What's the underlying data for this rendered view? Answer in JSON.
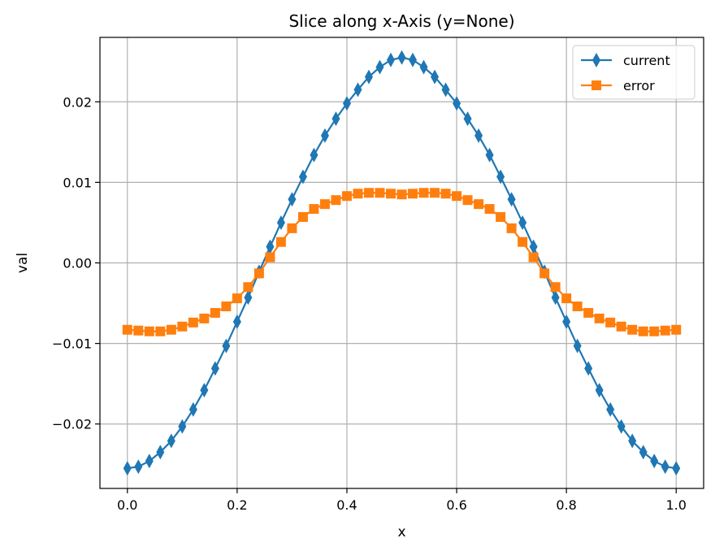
{
  "chart_data": {
    "type": "line",
    "title": "Slice along x-Axis (y=None)",
    "xlabel": "x",
    "ylabel": "val",
    "xlim": [
      -0.05,
      1.05
    ],
    "ylim": [
      -0.028,
      0.028
    ],
    "x_ticks": [
      0.0,
      0.2,
      0.4,
      0.6,
      0.8,
      1.0
    ],
    "x_tick_labels": [
      "0.0",
      "0.2",
      "0.4",
      "0.6",
      "0.8",
      "1.0"
    ],
    "y_ticks": [
      -0.02,
      -0.01,
      0.0,
      0.01,
      0.02
    ],
    "y_tick_labels": [
      "−0.02",
      "−0.01",
      "0.00",
      "0.01",
      "0.02"
    ],
    "grid": true,
    "legend_position": "top-right",
    "series": [
      {
        "name": "current",
        "color": "#1f77b4",
        "marker": "thin-diamond",
        "x": [
          0.0,
          0.02,
          0.04,
          0.06,
          0.08,
          0.1,
          0.12,
          0.14,
          0.16,
          0.18,
          0.2,
          0.22,
          0.24,
          0.26,
          0.28,
          0.3,
          0.32,
          0.34,
          0.36,
          0.38,
          0.4,
          0.42,
          0.44,
          0.46,
          0.48,
          0.5,
          0.52,
          0.54,
          0.56,
          0.58,
          0.6,
          0.62,
          0.64,
          0.66,
          0.68,
          0.7,
          0.72,
          0.74,
          0.76,
          0.78,
          0.8,
          0.82,
          0.84,
          0.86,
          0.88,
          0.9,
          0.92,
          0.94,
          0.96,
          0.98,
          1.0
        ],
        "values": [
          -0.0255,
          -0.0253,
          -0.0246,
          -0.0235,
          -0.0221,
          -0.0203,
          -0.0182,
          -0.0158,
          -0.0131,
          -0.0103,
          -0.0073,
          -0.0043,
          -0.0011,
          0.002,
          0.005,
          0.0079,
          0.0107,
          0.0134,
          0.0158,
          0.0179,
          0.0198,
          0.0215,
          0.0231,
          0.0243,
          0.0252,
          0.0255,
          0.0252,
          0.0243,
          0.0231,
          0.0215,
          0.0198,
          0.0179,
          0.0158,
          0.0134,
          0.0107,
          0.0079,
          0.005,
          0.002,
          -0.0011,
          -0.0043,
          -0.0073,
          -0.0103,
          -0.0131,
          -0.0158,
          -0.0182,
          -0.0203,
          -0.0221,
          -0.0235,
          -0.0246,
          -0.0253,
          -0.0255
        ]
      },
      {
        "name": "error",
        "color": "#ff7f0e",
        "marker": "square",
        "x": [
          0.0,
          0.02,
          0.04,
          0.06,
          0.08,
          0.1,
          0.12,
          0.14,
          0.16,
          0.18,
          0.2,
          0.22,
          0.24,
          0.26,
          0.28,
          0.3,
          0.32,
          0.34,
          0.36,
          0.38,
          0.4,
          0.42,
          0.44,
          0.46,
          0.48,
          0.5,
          0.52,
          0.54,
          0.56,
          0.58,
          0.6,
          0.62,
          0.64,
          0.66,
          0.68,
          0.7,
          0.72,
          0.74,
          0.76,
          0.78,
          0.8,
          0.82,
          0.84,
          0.86,
          0.88,
          0.9,
          0.92,
          0.94,
          0.96,
          0.98,
          1.0
        ],
        "values": [
          -0.0083,
          -0.0084,
          -0.0085,
          -0.0085,
          -0.0083,
          -0.0079,
          -0.0074,
          -0.0069,
          -0.0062,
          -0.0054,
          -0.0044,
          -0.003,
          -0.0013,
          0.0007,
          0.0026,
          0.0043,
          0.0057,
          0.0067,
          0.0073,
          0.0078,
          0.0083,
          0.0086,
          0.0087,
          0.0087,
          0.0086,
          0.0085,
          0.0086,
          0.0087,
          0.0087,
          0.0086,
          0.0083,
          0.0078,
          0.0073,
          0.0067,
          0.0057,
          0.0043,
          0.0026,
          0.0007,
          -0.0013,
          -0.003,
          -0.0044,
          -0.0054,
          -0.0062,
          -0.0069,
          -0.0074,
          -0.0079,
          -0.0083,
          -0.0085,
          -0.0085,
          -0.0084,
          -0.0083
        ]
      }
    ]
  }
}
